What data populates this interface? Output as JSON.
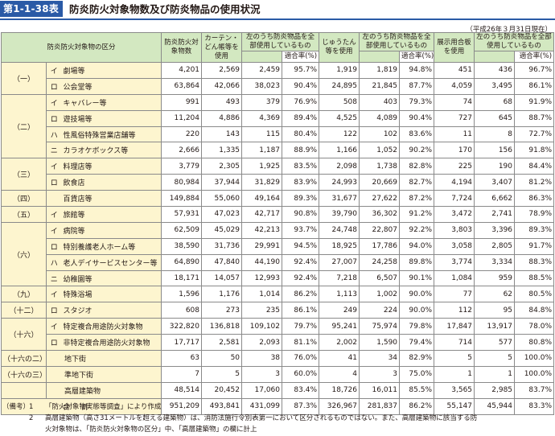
{
  "figure": {
    "label": "第1-1-38表",
    "title": "防炎防火対象物数及び防炎物品の使用状況",
    "date_note": "（平成26年３月31日現在）"
  },
  "header": {
    "category": "防炎防火対象物の区分",
    "col_objects": "防炎防火対象物数",
    "col_curtain": "カーテン・どん帳等を使用",
    "col_curtain_flame": "左のうち防炎物品を全部使用しているもの",
    "col_carpet": "じゅうたん等を使用",
    "col_carpet_flame": "左のうち防炎物品を全部使用しているもの",
    "col_plywood": "展示用合板を使用",
    "col_plywood_flame": "左のうち防炎物品を全部使用しているもの",
    "rate": "適合率(%)"
  },
  "rows": [
    {
      "cat": "（一）",
      "sub": "イ",
      "name": "劇場等",
      "v": [
        "4,201",
        "2,569",
        "2,459",
        "95.7%",
        "1,919",
        "1,819",
        "94.8%",
        "451",
        "436",
        "96.7%"
      ]
    },
    {
      "cat": "",
      "sub": "ロ",
      "name": "公会堂等",
      "v": [
        "63,864",
        "42,066",
        "38,023",
        "90.4%",
        "24,895",
        "21,845",
        "87.7%",
        "4,059",
        "3,495",
        "86.1%"
      ]
    },
    {
      "cat": "（二）",
      "sub": "イ",
      "name": "キャバレー等",
      "v": [
        "991",
        "493",
        "379",
        "76.9%",
        "508",
        "403",
        "79.3%",
        "74",
        "68",
        "91.9%"
      ]
    },
    {
      "cat": "",
      "sub": "ロ",
      "name": "遊技場等",
      "v": [
        "11,204",
        "4,886",
        "4,369",
        "89.4%",
        "4,525",
        "4,089",
        "90.4%",
        "727",
        "645",
        "88.7%"
      ]
    },
    {
      "cat": "",
      "sub": "ハ",
      "name": "性風俗特殊営業店舗等",
      "v": [
        "220",
        "143",
        "115",
        "80.4%",
        "122",
        "102",
        "83.6%",
        "11",
        "8",
        "72.7%"
      ]
    },
    {
      "cat": "",
      "sub": "ニ",
      "name": "カラオケボックス等",
      "v": [
        "2,666",
        "1,335",
        "1,187",
        "88.9%",
        "1,166",
        "1,052",
        "90.2%",
        "170",
        "156",
        "91.8%"
      ]
    },
    {
      "cat": "（三）",
      "sub": "イ",
      "name": "料理店等",
      "v": [
        "3,779",
        "2,305",
        "1,925",
        "83.5%",
        "2,098",
        "1,738",
        "82.8%",
        "225",
        "190",
        "84.4%"
      ]
    },
    {
      "cat": "",
      "sub": "ロ",
      "name": "飲食店",
      "v": [
        "80,984",
        "37,944",
        "31,829",
        "83.9%",
        "24,993",
        "20,669",
        "82.7%",
        "4,194",
        "3,407",
        "81.2%"
      ]
    },
    {
      "cat": "（四）",
      "sub": "",
      "name": "百貨店等",
      "v": [
        "149,884",
        "55,060",
        "49,164",
        "89.3%",
        "31,677",
        "27,622",
        "87.2%",
        "7,724",
        "6,662",
        "86.3%"
      ]
    },
    {
      "cat": "（五）",
      "sub": "イ",
      "name": "旅館等",
      "v": [
        "57,931",
        "47,023",
        "42,717",
        "90.8%",
        "39,790",
        "36,302",
        "91.2%",
        "3,472",
        "2,741",
        "78.9%"
      ]
    },
    {
      "cat": "（六）",
      "sub": "イ",
      "name": "病院等",
      "v": [
        "62,509",
        "45,029",
        "42,213",
        "93.7%",
        "24,748",
        "22,807",
        "92.2%",
        "3,803",
        "3,396",
        "89.3%"
      ]
    },
    {
      "cat": "",
      "sub": "ロ",
      "name": "特別養護老人ホーム等",
      "v": [
        "38,590",
        "31,736",
        "29,991",
        "94.5%",
        "18,925",
        "17,786",
        "94.0%",
        "3,058",
        "2,805",
        "91.7%"
      ]
    },
    {
      "cat": "",
      "sub": "ハ",
      "name": "老人デイサービスセンター等",
      "v": [
        "64,890",
        "47,840",
        "44,190",
        "92.4%",
        "27,007",
        "24,258",
        "89.8%",
        "3,774",
        "3,334",
        "88.3%"
      ]
    },
    {
      "cat": "",
      "sub": "ニ",
      "name": "幼稚園等",
      "v": [
        "18,171",
        "14,057",
        "12,993",
        "92.4%",
        "7,218",
        "6,507",
        "90.1%",
        "1,084",
        "959",
        "88.5%"
      ]
    },
    {
      "cat": "（九）",
      "sub": "イ",
      "name": "特殊浴場",
      "v": [
        "1,596",
        "1,176",
        "1,014",
        "86.2%",
        "1,113",
        "1,002",
        "90.0%",
        "77",
        "62",
        "80.5%"
      ]
    },
    {
      "cat": "（十二）",
      "sub": "ロ",
      "name": "スタジオ",
      "v": [
        "608",
        "273",
        "235",
        "86.1%",
        "249",
        "224",
        "90.0%",
        "112",
        "95",
        "84.8%"
      ]
    },
    {
      "cat": "（十六）",
      "sub": "イ",
      "name": "特定複合用途防火対象物",
      "v": [
        "322,820",
        "136,818",
        "109,102",
        "79.7%",
        "95,241",
        "75,974",
        "79.8%",
        "17,847",
        "13,917",
        "78.0%"
      ]
    },
    {
      "cat": "",
      "sub": "ロ",
      "name": "非特定複合用途防火対象物",
      "v": [
        "17,717",
        "2,581",
        "2,093",
        "81.1%",
        "2,002",
        "1,590",
        "79.4%",
        "714",
        "577",
        "80.8%"
      ]
    },
    {
      "cat": "（十六の二）",
      "sub": "",
      "name": "地下街",
      "v": [
        "63",
        "50",
        "38",
        "76.0%",
        "41",
        "34",
        "82.9%",
        "5",
        "5",
        "100.0%"
      ]
    },
    {
      "cat": "（十六の三）",
      "sub": "",
      "name": "準地下街",
      "v": [
        "7",
        "5",
        "3",
        "60.0%",
        "4",
        "3",
        "75.0%",
        "1",
        "1",
        "100.0%"
      ]
    },
    {
      "cat": "",
      "sub": "",
      "name": "高層建築物",
      "v": [
        "48,514",
        "20,452",
        "17,060",
        "83.4%",
        "18,726",
        "16,011",
        "85.5%",
        "3,565",
        "2,985",
        "83.7%"
      ]
    }
  ],
  "total": {
    "label": "合計",
    "v": [
      "951,209",
      "493,841",
      "431,099",
      "87.3%",
      "326,967",
      "281,837",
      "86.2%",
      "55,147",
      "45,944",
      "83.3%"
    ]
  },
  "notes": {
    "label": "（備考）",
    "items": [
      {
        "n": "1",
        "text": "「防火対象物実態等調査」により作成"
      },
      {
        "n": "2",
        "text": "高層建築物（高さ31メートルを超える建築物）は、消防法施行令別表第一において区分されるものではない。また、高層建築物に該当する防"
      },
      {
        "n": "",
        "text": "火対象物は、「防炎防火対象物の区分」中、「高層建築物」の欄に計上"
      }
    ]
  }
}
